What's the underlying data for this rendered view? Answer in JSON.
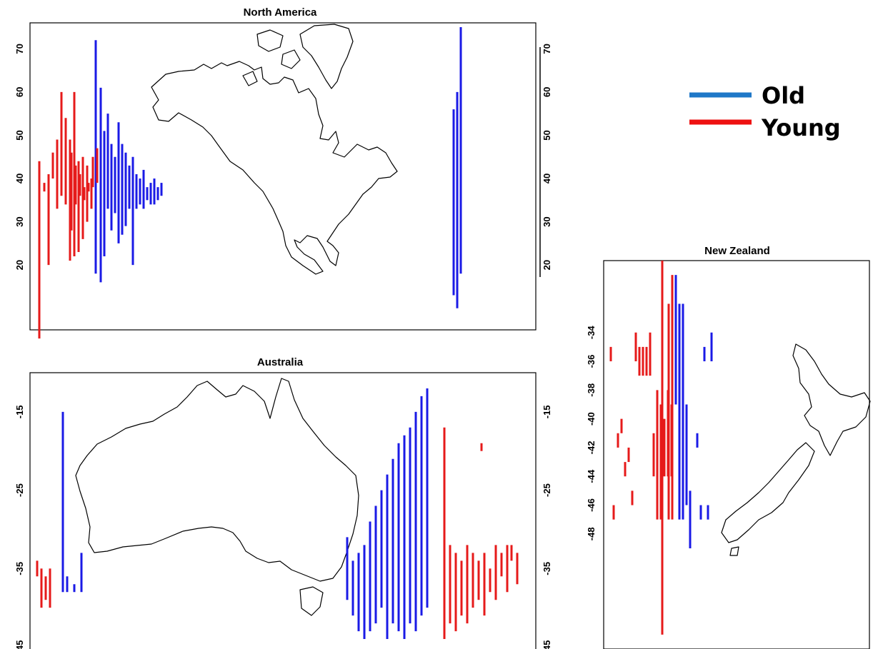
{
  "colors": {
    "old": "#1a1ae6",
    "young": "#e61a1a",
    "legend_old": "#1f78c8",
    "legend_young": "#ee1111"
  },
  "legend": {
    "old_label": "Old",
    "young_label": "Young"
  },
  "chart_data": [
    {
      "type": "bar",
      "title": "North America",
      "ylim": [
        5,
        76
      ],
      "ticks": [
        "20",
        "30",
        "40",
        "50",
        "60",
        "70"
      ],
      "tick_values": [
        20,
        30,
        40,
        50,
        60,
        70
      ],
      "series": [
        {
          "name": "Old",
          "values": [
            [
              18,
              72
            ],
            [
              16,
              61
            ],
            [
              22,
              51
            ],
            [
              33,
              55
            ],
            [
              28,
              48
            ],
            [
              32,
              45
            ],
            [
              25,
              53
            ],
            [
              27,
              48
            ],
            [
              29,
              46
            ],
            [
              33,
              43
            ],
            [
              20,
              45
            ],
            [
              33,
              41
            ],
            [
              34,
              40
            ],
            [
              33,
              42
            ],
            [
              35,
              38
            ],
            [
              34,
              39
            ],
            [
              34,
              40
            ],
            [
              35,
              38
            ],
            [
              36,
              39
            ],
            [
              18,
              75
            ],
            [
              10,
              60
            ],
            [
              13,
              56
            ]
          ]
        },
        {
          "name": "Young",
          "values": [
            [
              3,
              44
            ],
            [
              37,
              39
            ],
            [
              20,
              41
            ],
            [
              40,
              46
            ],
            [
              33,
              49
            ],
            [
              36,
              60
            ],
            [
              34,
              54
            ],
            [
              21,
              49
            ],
            [
              22,
              60
            ],
            [
              23,
              44
            ],
            [
              26,
              45
            ],
            [
              30,
              43
            ],
            [
              33,
              40
            ],
            [
              28,
              46
            ],
            [
              34,
              43
            ],
            [
              36,
              41
            ],
            [
              35,
              38
            ],
            [
              37,
              39
            ],
            [
              38,
              45
            ],
            [
              39,
              47
            ]
          ]
        }
      ]
    },
    {
      "type": "bar",
      "title": "Australia",
      "ylim": [
        -46,
        -10
      ],
      "ticks": [
        "-15",
        "-25",
        "-35",
        "-45"
      ],
      "tick_values": [
        -15,
        -25,
        -35,
        -45
      ],
      "series": [
        {
          "name": "Old",
          "values": [
            [
              -38,
              -15
            ],
            [
              -38,
              -36
            ],
            [
              -38,
              -37
            ],
            [
              -38,
              -33
            ],
            [
              -39,
              -31
            ],
            [
              -41,
              -34
            ],
            [
              -43,
              -33
            ],
            [
              -44,
              -32
            ],
            [
              -43,
              -29
            ],
            [
              -42,
              -27
            ],
            [
              -40,
              -25
            ],
            [
              -44,
              -23
            ],
            [
              -42,
              -21
            ],
            [
              -43,
              -19
            ],
            [
              -44,
              -18
            ],
            [
              -42,
              -17
            ],
            [
              -43,
              -15
            ],
            [
              -41,
              -13
            ],
            [
              -40,
              -12
            ]
          ]
        },
        {
          "name": "Young",
          "values": [
            [
              -36,
              -34
            ],
            [
              -40,
              -35
            ],
            [
              -39,
              -36
            ],
            [
              -40,
              -35
            ],
            [
              -44,
              -17
            ],
            [
              -42,
              -32
            ],
            [
              -43,
              -33
            ],
            [
              -41,
              -34
            ],
            [
              -42,
              -32
            ],
            [
              -40,
              -33
            ],
            [
              -39,
              -34
            ],
            [
              -41,
              -33
            ],
            [
              -38,
              -35
            ],
            [
              -39,
              -32
            ],
            [
              -36,
              -33
            ],
            [
              -38,
              -32
            ],
            [
              -34,
              -32
            ],
            [
              -37,
              -33
            ],
            [
              -19,
              -20
            ]
          ]
        }
      ]
    },
    {
      "type": "bar",
      "title": "New Zealand",
      "ylim": [
        -56,
        -29
      ],
      "ticks": [
        "-34",
        "-36",
        "-38",
        "-40",
        "-42",
        "-44",
        "-46",
        "-48"
      ],
      "tick_values": [
        -34,
        -36,
        -38,
        -40,
        -42,
        -44,
        -46,
        -48
      ],
      "series": [
        {
          "name": "Old",
          "values": [
            [
              -39,
              -30
            ],
            [
              -47,
              -32
            ],
            [
              -47,
              -32
            ],
            [
              -46,
              -39
            ],
            [
              -49,
              -45
            ],
            [
              -41,
              -42
            ],
            [
              -46,
              -47
            ],
            [
              -36,
              -35
            ],
            [
              -46,
              -47
            ],
            [
              -36,
              -34
            ]
          ]
        },
        {
          "name": "Young",
          "values": [
            [
              -36,
              -35
            ],
            [
              -47,
              -46
            ],
            [
              -42,
              -41
            ],
            [
              -41,
              -40
            ],
            [
              -44,
              -43
            ],
            [
              -43,
              -42
            ],
            [
              -46,
              -45
            ],
            [
              -36,
              -34
            ],
            [
              -37,
              -35
            ],
            [
              -37,
              -35
            ],
            [
              -37,
              -35
            ],
            [
              -37,
              -34
            ],
            [
              -44,
              -41
            ],
            [
              -47,
              -38
            ],
            [
              -47,
              -39
            ],
            [
              -44,
              -40
            ],
            [
              -44,
              -38
            ],
            [
              -44,
              -39
            ],
            [
              -55,
              -29
            ],
            [
              -47,
              -32
            ],
            [
              -47,
              -30
            ]
          ]
        }
      ]
    }
  ]
}
